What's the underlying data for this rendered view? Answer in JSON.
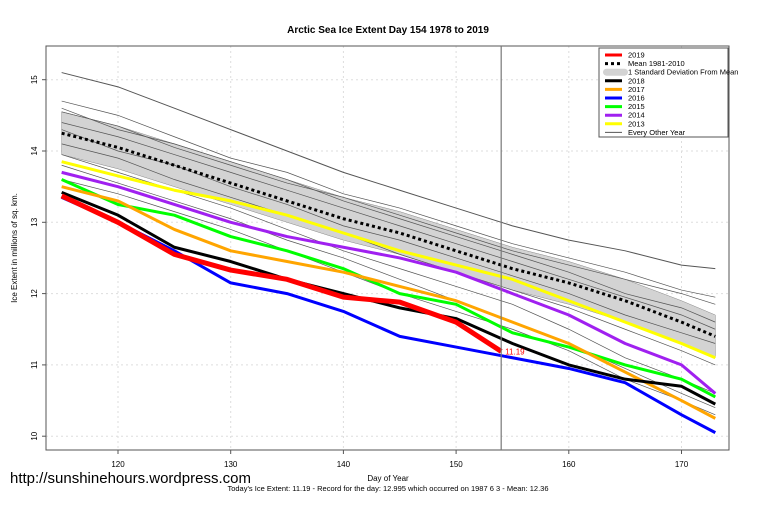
{
  "chart_data": {
    "type": "line",
    "title": "Arctic Sea Ice Extent Day 154 1978 to 2019",
    "xlabel": "Day of Year",
    "ylabel": "Ice Extent in millions of sq. km.",
    "xlim": [
      114,
      174
    ],
    "ylim": [
      9.85,
      15.6
    ],
    "xticks": [
      120,
      130,
      140,
      150,
      160,
      170
    ],
    "yticks": [
      10,
      11,
      12,
      13,
      14,
      15
    ],
    "grid": true,
    "legend_position": "top-right",
    "marker_day": 154,
    "current_label": "11.19",
    "subtitle": "Today's Ice Extent: 11.19  - Record for the day: 12.995 which occurred on 1987 6 3  - Mean: 12.36",
    "x": [
      115,
      120,
      125,
      130,
      135,
      140,
      145,
      150,
      155,
      160,
      165,
      170,
      173
    ],
    "sd_band": {
      "name": "1 Standard Deviation From Mean",
      "halfwidth": 0.3,
      "color": "#d3d3d3"
    },
    "series": [
      {
        "name": "Mean 1981-2010",
        "color": "#000000",
        "style": "dotted",
        "values": [
          14.25,
          14.05,
          13.8,
          13.55,
          13.3,
          13.05,
          12.85,
          12.6,
          12.35,
          12.15,
          11.9,
          11.6,
          11.4
        ]
      },
      {
        "name": "2019",
        "color": "#ff0000",
        "width": 5,
        "values": [
          13.37,
          13.0,
          12.55,
          12.33,
          12.2,
          11.95,
          11.88,
          11.6,
          null,
          null,
          null,
          null,
          null
        ],
        "end": {
          "day": 154,
          "value": 11.19
        }
      },
      {
        "name": "2018",
        "color": "#000000",
        "width": 3,
        "values": [
          13.42,
          13.1,
          12.65,
          12.45,
          12.2,
          12.0,
          11.8,
          11.65,
          11.3,
          11.0,
          10.8,
          10.7,
          10.45
        ]
      },
      {
        "name": "2017",
        "color": "#ffa500",
        "width": 3,
        "values": [
          13.5,
          13.3,
          12.9,
          12.6,
          12.45,
          12.3,
          12.1,
          11.9,
          11.6,
          11.3,
          10.9,
          10.5,
          10.25
        ]
      },
      {
        "name": "2016",
        "color": "#0000ff",
        "width": 3,
        "values": [
          13.35,
          13.0,
          12.6,
          12.15,
          12.0,
          11.75,
          11.4,
          11.25,
          11.1,
          10.95,
          10.75,
          10.3,
          10.05
        ]
      },
      {
        "name": "2015",
        "color": "#00ff00",
        "width": 3,
        "values": [
          13.6,
          13.25,
          13.1,
          12.8,
          12.6,
          12.35,
          12.0,
          11.85,
          11.45,
          11.25,
          11.0,
          10.8,
          10.55
        ]
      },
      {
        "name": "2014",
        "color": "#a020f0",
        "width": 3,
        "values": [
          13.7,
          13.5,
          13.25,
          13.0,
          12.8,
          12.65,
          12.5,
          12.3,
          12.0,
          11.7,
          11.3,
          11.0,
          10.6
        ]
      },
      {
        "name": "2013",
        "color": "#ffff00",
        "width": 3,
        "values": [
          13.85,
          13.65,
          13.45,
          13.3,
          13.1,
          12.85,
          12.6,
          12.4,
          12.2,
          11.9,
          11.6,
          11.3,
          11.1
        ]
      },
      {
        "name": "Every Other Year",
        "color": "#555555",
        "width": 1,
        "values": [
          15.1,
          14.9,
          14.6,
          14.3,
          14.0,
          13.7,
          13.45,
          13.2,
          12.95,
          12.75,
          12.6,
          12.4,
          12.35
        ]
      }
    ],
    "other_years": [
      [
        14.7,
        14.5,
        14.2,
        13.9,
        13.7,
        13.4,
        13.2,
        12.95,
        12.7,
        12.5,
        12.3,
        12.05,
        11.95
      ],
      [
        14.6,
        14.3,
        14.1,
        13.85,
        13.6,
        13.3,
        13.05,
        12.8,
        12.55,
        12.3,
        12.0,
        11.8,
        11.6
      ],
      [
        14.4,
        14.2,
        13.95,
        13.7,
        13.45,
        13.2,
        12.95,
        12.7,
        12.45,
        12.2,
        11.95,
        11.7,
        11.5
      ],
      [
        14.3,
        14.0,
        13.8,
        13.5,
        13.25,
        12.95,
        12.75,
        12.5,
        12.25,
        12.0,
        11.7,
        11.45,
        11.3
      ],
      [
        14.1,
        13.9,
        13.6,
        13.35,
        13.1,
        12.85,
        12.55,
        12.3,
        12.05,
        11.8,
        11.5,
        11.2,
        11.0
      ],
      [
        13.95,
        13.7,
        13.45,
        13.2,
        12.9,
        12.6,
        12.35,
        12.1,
        11.85,
        11.5,
        11.1,
        10.8,
        10.6
      ],
      [
        13.8,
        13.55,
        13.3,
        13.05,
        12.75,
        12.5,
        12.2,
        11.9,
        11.6,
        11.3,
        10.95,
        10.6,
        10.4
      ],
      [
        14.55,
        14.35,
        14.05,
        13.8,
        13.55,
        13.35,
        13.1,
        12.85,
        12.6,
        12.4,
        12.2,
        12.0,
        11.85
      ],
      [
        13.6,
        13.4,
        13.15,
        12.9,
        12.6,
        12.3,
        12.0,
        11.75,
        11.5,
        11.2,
        10.8,
        10.5,
        10.3
      ]
    ]
  },
  "watermark": "http://sunshinehours.wordpress.com"
}
